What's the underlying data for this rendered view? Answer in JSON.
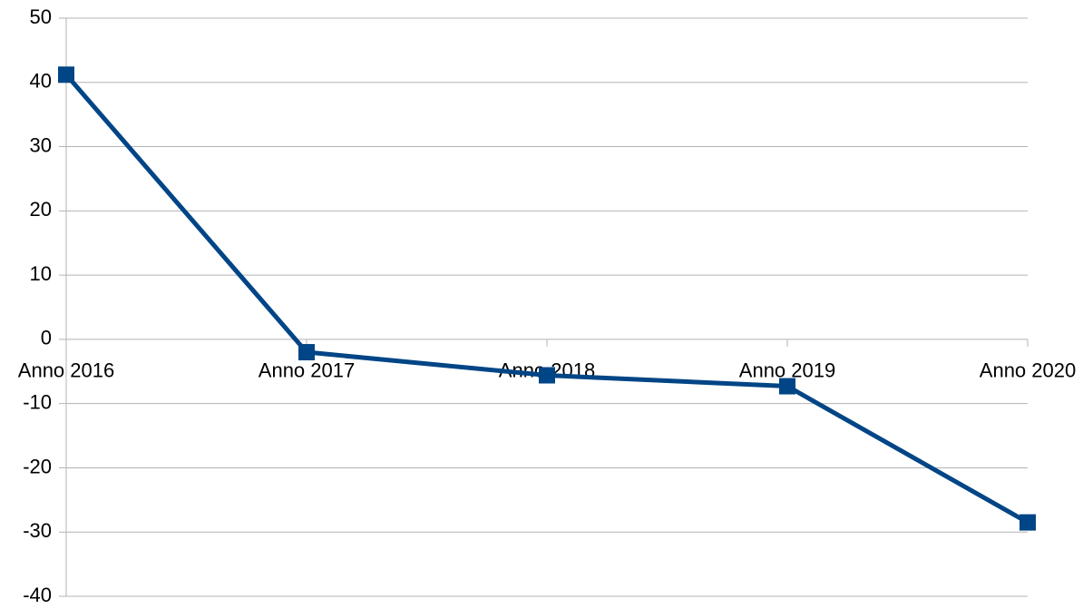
{
  "chart_data": {
    "type": "line",
    "categories": [
      "Anno 2016",
      "Anno 2017",
      "Anno 2018",
      "Anno 2019",
      "Anno 2020"
    ],
    "series": [
      {
        "name": null,
        "color": "#004586",
        "values": [
          41.2,
          -2.0,
          -5.6,
          -7.3,
          -28.5
        ]
      }
    ],
    "ylim": [
      -40,
      50
    ],
    "yticks": [
      -40,
      -30,
      -20,
      -10,
      0,
      10,
      20,
      30,
      40,
      50
    ],
    "grid": true
  }
}
